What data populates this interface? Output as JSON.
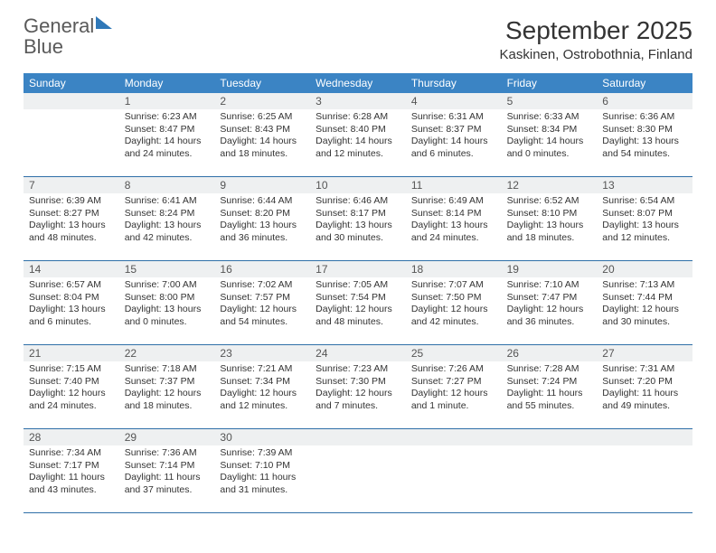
{
  "logo": {
    "word1": "General",
    "word2": "Blue"
  },
  "header": {
    "title": "September 2025",
    "location": "Kaskinen, Ostrobothnia, Finland"
  },
  "colors": {
    "header_bg": "#3b84c4",
    "header_text": "#ffffff",
    "week_border": "#2f6fa8",
    "daynum_bg": "#eef0f1",
    "body_text": "#333333"
  },
  "dow": [
    "Sunday",
    "Monday",
    "Tuesday",
    "Wednesday",
    "Thursday",
    "Friday",
    "Saturday"
  ],
  "weeks": [
    [
      {
        "n": "",
        "sunrise": "",
        "sunset": "",
        "daylight": ""
      },
      {
        "n": "1",
        "sunrise": "Sunrise: 6:23 AM",
        "sunset": "Sunset: 8:47 PM",
        "daylight": "Daylight: 14 hours and 24 minutes."
      },
      {
        "n": "2",
        "sunrise": "Sunrise: 6:25 AM",
        "sunset": "Sunset: 8:43 PM",
        "daylight": "Daylight: 14 hours and 18 minutes."
      },
      {
        "n": "3",
        "sunrise": "Sunrise: 6:28 AM",
        "sunset": "Sunset: 8:40 PM",
        "daylight": "Daylight: 14 hours and 12 minutes."
      },
      {
        "n": "4",
        "sunrise": "Sunrise: 6:31 AM",
        "sunset": "Sunset: 8:37 PM",
        "daylight": "Daylight: 14 hours and 6 minutes."
      },
      {
        "n": "5",
        "sunrise": "Sunrise: 6:33 AM",
        "sunset": "Sunset: 8:34 PM",
        "daylight": "Daylight: 14 hours and 0 minutes."
      },
      {
        "n": "6",
        "sunrise": "Sunrise: 6:36 AM",
        "sunset": "Sunset: 8:30 PM",
        "daylight": "Daylight: 13 hours and 54 minutes."
      }
    ],
    [
      {
        "n": "7",
        "sunrise": "Sunrise: 6:39 AM",
        "sunset": "Sunset: 8:27 PM",
        "daylight": "Daylight: 13 hours and 48 minutes."
      },
      {
        "n": "8",
        "sunrise": "Sunrise: 6:41 AM",
        "sunset": "Sunset: 8:24 PM",
        "daylight": "Daylight: 13 hours and 42 minutes."
      },
      {
        "n": "9",
        "sunrise": "Sunrise: 6:44 AM",
        "sunset": "Sunset: 8:20 PM",
        "daylight": "Daylight: 13 hours and 36 minutes."
      },
      {
        "n": "10",
        "sunrise": "Sunrise: 6:46 AM",
        "sunset": "Sunset: 8:17 PM",
        "daylight": "Daylight: 13 hours and 30 minutes."
      },
      {
        "n": "11",
        "sunrise": "Sunrise: 6:49 AM",
        "sunset": "Sunset: 8:14 PM",
        "daylight": "Daylight: 13 hours and 24 minutes."
      },
      {
        "n": "12",
        "sunrise": "Sunrise: 6:52 AM",
        "sunset": "Sunset: 8:10 PM",
        "daylight": "Daylight: 13 hours and 18 minutes."
      },
      {
        "n": "13",
        "sunrise": "Sunrise: 6:54 AM",
        "sunset": "Sunset: 8:07 PM",
        "daylight": "Daylight: 13 hours and 12 minutes."
      }
    ],
    [
      {
        "n": "14",
        "sunrise": "Sunrise: 6:57 AM",
        "sunset": "Sunset: 8:04 PM",
        "daylight": "Daylight: 13 hours and 6 minutes."
      },
      {
        "n": "15",
        "sunrise": "Sunrise: 7:00 AM",
        "sunset": "Sunset: 8:00 PM",
        "daylight": "Daylight: 13 hours and 0 minutes."
      },
      {
        "n": "16",
        "sunrise": "Sunrise: 7:02 AM",
        "sunset": "Sunset: 7:57 PM",
        "daylight": "Daylight: 12 hours and 54 minutes."
      },
      {
        "n": "17",
        "sunrise": "Sunrise: 7:05 AM",
        "sunset": "Sunset: 7:54 PM",
        "daylight": "Daylight: 12 hours and 48 minutes."
      },
      {
        "n": "18",
        "sunrise": "Sunrise: 7:07 AM",
        "sunset": "Sunset: 7:50 PM",
        "daylight": "Daylight: 12 hours and 42 minutes."
      },
      {
        "n": "19",
        "sunrise": "Sunrise: 7:10 AM",
        "sunset": "Sunset: 7:47 PM",
        "daylight": "Daylight: 12 hours and 36 minutes."
      },
      {
        "n": "20",
        "sunrise": "Sunrise: 7:13 AM",
        "sunset": "Sunset: 7:44 PM",
        "daylight": "Daylight: 12 hours and 30 minutes."
      }
    ],
    [
      {
        "n": "21",
        "sunrise": "Sunrise: 7:15 AM",
        "sunset": "Sunset: 7:40 PM",
        "daylight": "Daylight: 12 hours and 24 minutes."
      },
      {
        "n": "22",
        "sunrise": "Sunrise: 7:18 AM",
        "sunset": "Sunset: 7:37 PM",
        "daylight": "Daylight: 12 hours and 18 minutes."
      },
      {
        "n": "23",
        "sunrise": "Sunrise: 7:21 AM",
        "sunset": "Sunset: 7:34 PM",
        "daylight": "Daylight: 12 hours and 12 minutes."
      },
      {
        "n": "24",
        "sunrise": "Sunrise: 7:23 AM",
        "sunset": "Sunset: 7:30 PM",
        "daylight": "Daylight: 12 hours and 7 minutes."
      },
      {
        "n": "25",
        "sunrise": "Sunrise: 7:26 AM",
        "sunset": "Sunset: 7:27 PM",
        "daylight": "Daylight: 12 hours and 1 minute."
      },
      {
        "n": "26",
        "sunrise": "Sunrise: 7:28 AM",
        "sunset": "Sunset: 7:24 PM",
        "daylight": "Daylight: 11 hours and 55 minutes."
      },
      {
        "n": "27",
        "sunrise": "Sunrise: 7:31 AM",
        "sunset": "Sunset: 7:20 PM",
        "daylight": "Daylight: 11 hours and 49 minutes."
      }
    ],
    [
      {
        "n": "28",
        "sunrise": "Sunrise: 7:34 AM",
        "sunset": "Sunset: 7:17 PM",
        "daylight": "Daylight: 11 hours and 43 minutes."
      },
      {
        "n": "29",
        "sunrise": "Sunrise: 7:36 AM",
        "sunset": "Sunset: 7:14 PM",
        "daylight": "Daylight: 11 hours and 37 minutes."
      },
      {
        "n": "30",
        "sunrise": "Sunrise: 7:39 AM",
        "sunset": "Sunset: 7:10 PM",
        "daylight": "Daylight: 11 hours and 31 minutes."
      },
      {
        "n": "",
        "sunrise": "",
        "sunset": "",
        "daylight": ""
      },
      {
        "n": "",
        "sunrise": "",
        "sunset": "",
        "daylight": ""
      },
      {
        "n": "",
        "sunrise": "",
        "sunset": "",
        "daylight": ""
      },
      {
        "n": "",
        "sunrise": "",
        "sunset": "",
        "daylight": ""
      }
    ]
  ]
}
